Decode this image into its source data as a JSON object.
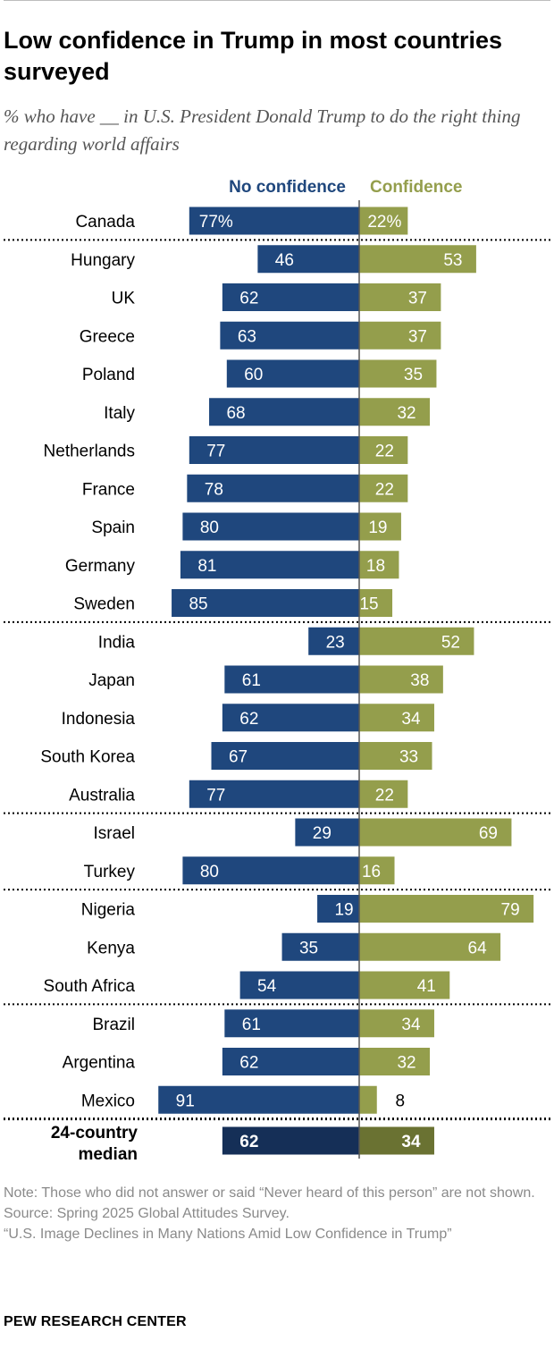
{
  "title": "Low confidence in Trump in most countries surveyed",
  "subtitle": "% who have __ in U.S. President Donald Trump to do the right thing regarding world affairs",
  "colors": {
    "no_confidence": "#1f477d",
    "confidence": "#949e4c",
    "median_no_confidence": "#152f57",
    "median_confidence": "#6a7232"
  },
  "chart_data": {
    "type": "bar",
    "orientation": "diverging-horizontal",
    "series": [
      {
        "name": "No confidence",
        "values": [
          77,
          46,
          62,
          63,
          60,
          68,
          77,
          78,
          80,
          81,
          85,
          23,
          61,
          62,
          67,
          77,
          29,
          80,
          19,
          35,
          54,
          61,
          62,
          91
        ]
      },
      {
        "name": "Confidence",
        "values": [
          22,
          53,
          37,
          37,
          35,
          32,
          22,
          22,
          19,
          18,
          15,
          52,
          38,
          34,
          33,
          22,
          69,
          16,
          79,
          64,
          41,
          34,
          32,
          8
        ]
      }
    ],
    "categories": [
      "Canada",
      "Hungary",
      "UK",
      "Greece",
      "Poland",
      "Italy",
      "Netherlands",
      "France",
      "Spain",
      "Germany",
      "Sweden",
      "India",
      "Japan",
      "Indonesia",
      "South Korea",
      "Australia",
      "Israel",
      "Turkey",
      "Nigeria",
      "Kenya",
      "South Africa",
      "Brazil",
      "Argentina",
      "Mexico"
    ],
    "first_row_suffix": "%",
    "group_breaks_after": [
      "Canada",
      "Sweden",
      "Australia",
      "Turkey",
      "South Africa",
      "Mexico"
    ],
    "median": {
      "label_line1": "24-country",
      "label_line2": "median",
      "no_confidence": 62,
      "confidence": 34
    }
  },
  "notes": {
    "note": "Note: Those who did not answer or said “Never heard of this person” are not shown.",
    "source": "Source: Spring 2025 Global Attitudes Survey.",
    "report": "“U.S. Image Declines in Many Nations Amid Low Confidence in Trump”"
  },
  "org": "PEW RESEARCH CENTER"
}
